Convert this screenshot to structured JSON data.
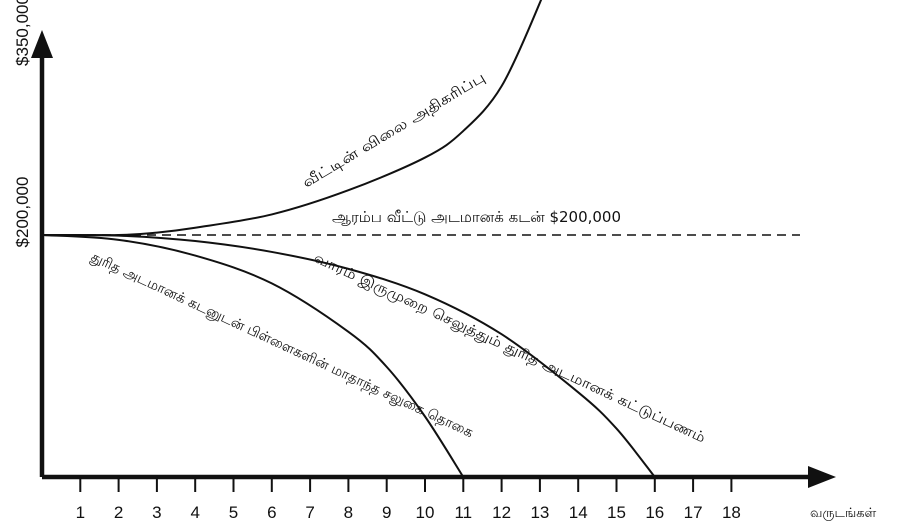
{
  "chart_data": {
    "type": "line",
    "title": "",
    "xlabel": "வருடங்கள்",
    "ylabel": "",
    "x_ticks": [
      1,
      2,
      3,
      4,
      5,
      6,
      7,
      8,
      9,
      10,
      11,
      12,
      13,
      14,
      15,
      16,
      17,
      18
    ],
    "xlim": [
      0,
      19.3
    ],
    "ylim": [
      0,
      420000
    ],
    "y_tick_labels": [
      {
        "value": 200000,
        "label": "$200,000"
      },
      {
        "value": 350000,
        "label": "$350,000"
      }
    ],
    "reference_line": {
      "name": "ஆரம்ப வீட்டு அடமானக் கடன் $200,000",
      "y": 200000
    },
    "series": [
      {
        "key": "home-value",
        "name": "வீட்டின் விலை அதிகரிப்பு",
        "x": [
          0,
          2,
          3,
          4,
          6,
          8,
          10,
          11,
          12,
          13,
          13.3
        ],
        "y": [
          200000,
          200000,
          202000,
          206000,
          217000,
          237000,
          264000,
          286000,
          323000,
          392000,
          420000
        ]
      },
      {
        "key": "biweekly-balance",
        "name": "வாரம் இருமுறை செலுத்தும் துரித அடமானக் கட்டுப்பணம்",
        "x": [
          0,
          2,
          4,
          6,
          8,
          10,
          12,
          14,
          15,
          16
        ],
        "y": [
          200000,
          199500,
          195000,
          186000,
          172000,
          151000,
          118000,
          70000,
          40000,
          0
        ]
      },
      {
        "key": "child-allowance-balance",
        "name": "துரித அடமானக் கடனுடன் பிள்ளைகளின் மாதாந்த சலுகை தொகை",
        "x": [
          0,
          2,
          4,
          6,
          8,
          9,
          10,
          11
        ],
        "y": [
          200000,
          196000,
          183000,
          160000,
          120000,
          91000,
          50000,
          0
        ]
      }
    ]
  }
}
